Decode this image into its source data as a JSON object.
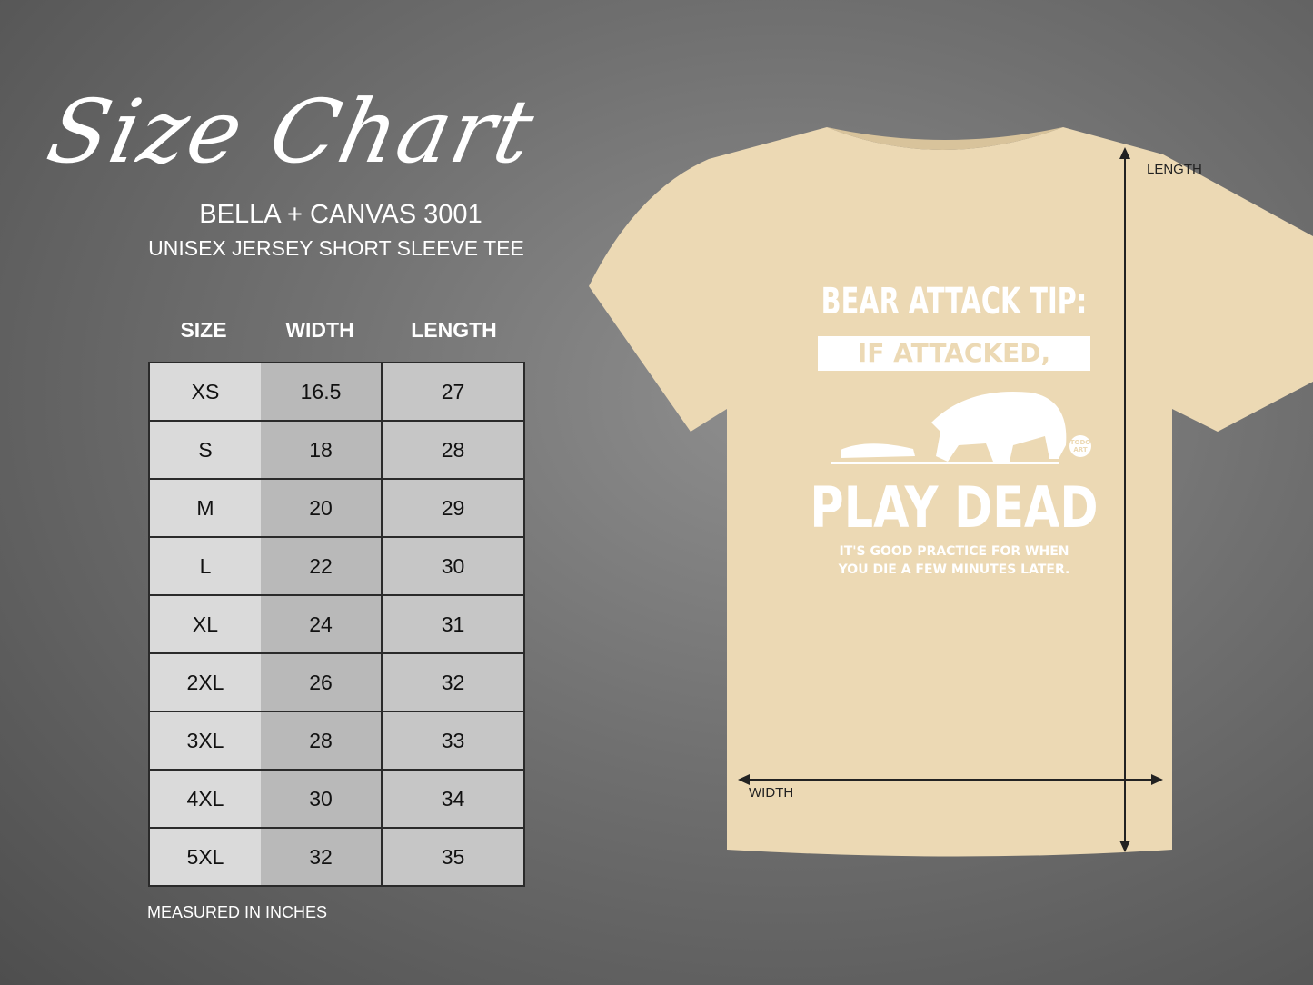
{
  "header": {
    "title": "Size Chart",
    "brand": "BELLA + CANVAS 3001",
    "subtitle": "UNISEX JERSEY SHORT SLEEVE TEE"
  },
  "table": {
    "columns": [
      "SIZE",
      "WIDTH",
      "LENGTH"
    ],
    "rows": [
      [
        "XS",
        "16.5",
        "27"
      ],
      [
        "S",
        "18",
        "28"
      ],
      [
        "M",
        "20",
        "29"
      ],
      [
        "L",
        "22",
        "30"
      ],
      [
        "XL",
        "24",
        "31"
      ],
      [
        "2XL",
        "26",
        "32"
      ],
      [
        "3XL",
        "28",
        "33"
      ],
      [
        "4XL",
        "30",
        "34"
      ],
      [
        "5XL",
        "32",
        "35"
      ]
    ]
  },
  "note": "MEASURED IN INCHES",
  "shirt": {
    "color": "#ecd9b4",
    "length_label": "LENGTH",
    "width_label": "WIDTH",
    "print": {
      "line1": "BEAR ATTACK TIP:",
      "line2": "IF ATTACKED,",
      "logo": "TODO ART",
      "line3": "PLAY DEAD",
      "line4": "IT'S GOOD PRACTICE FOR WHEN",
      "line5": "YOU DIE A FEW MINUTES LATER."
    }
  }
}
